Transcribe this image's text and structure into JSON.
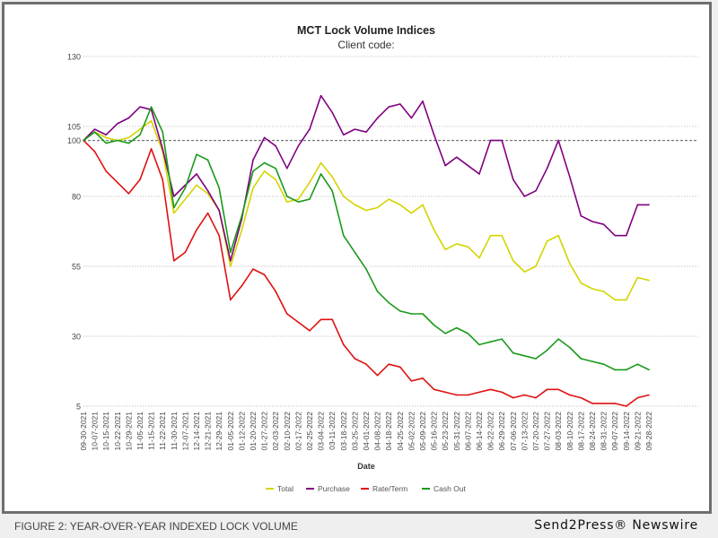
{
  "chart_data": {
    "type": "line",
    "title": "MCT Lock Volume Indices",
    "subtitle": "Client code:",
    "xlabel": "Date",
    "ylabel": "",
    "ylim": [
      5,
      130
    ],
    "y_ticks": [
      5,
      30,
      55,
      80,
      100,
      105,
      130
    ],
    "grid": true,
    "legend_position": "bottom",
    "categories": [
      "09-30-2021",
      "10-07-2021",
      "10-15-2021",
      "10-22-2021",
      "10-29-2021",
      "11-05-2021",
      "11-15-2021",
      "11-22-2021",
      "11-30-2021",
      "12-07-2021",
      "12-14-2021",
      "12-21-2021",
      "12-29-2021",
      "01-05-2022",
      "01-12-2022",
      "01-20-2022",
      "01-27-2022",
      "02-03-2022",
      "02-10-2022",
      "02-17-2022",
      "02-25-2022",
      "03-04-2022",
      "03-11-2022",
      "03-18-2022",
      "03-25-2022",
      "04-01-2022",
      "04-08-2022",
      "04-18-2022",
      "04-25-2022",
      "05-02-2022",
      "05-09-2022",
      "05-16-2022",
      "05-23-2022",
      "05-31-2022",
      "06-07-2022",
      "06-14-2022",
      "06-22-2022",
      "06-29-2022",
      "07-06-2022",
      "07-13-2022",
      "07-20-2022",
      "07-27-2022",
      "08-03-2022",
      "08-10-2022",
      "08-17-2022",
      "08-24-2022",
      "08-31-2022",
      "09-07-2022",
      "09-14-2022",
      "09-21-2022",
      "09-28-2022"
    ],
    "series": [
      {
        "name": "Total",
        "color": "#d4d400",
        "values": [
          100,
          103,
          101,
          100,
          101,
          104,
          107,
          96,
          74,
          79,
          84,
          81,
          75,
          55,
          68,
          83,
          89,
          86,
          78,
          79,
          85,
          92,
          87,
          80,
          77,
          75,
          76,
          79,
          77,
          74,
          77,
          68,
          61,
          63,
          62,
          58,
          66,
          66,
          57,
          53,
          55,
          64,
          66,
          56,
          49,
          47,
          46,
          43,
          43,
          51,
          50
        ]
      },
      {
        "name": "Purchase",
        "color": "#800080",
        "values": [
          100,
          104,
          102,
          106,
          108,
          112,
          111,
          97,
          80,
          84,
          88,
          82,
          75,
          57,
          72,
          93,
          101,
          98,
          90,
          98,
          104,
          116,
          110,
          102,
          104,
          103,
          108,
          112,
          113,
          108,
          114,
          102,
          91,
          94,
          91,
          88,
          100,
          100,
          86,
          80,
          82,
          90,
          100,
          87,
          73,
          71,
          70,
          66,
          66,
          77,
          77
        ]
      },
      {
        "name": "Rate/Term",
        "color": "#e01010",
        "values": [
          100,
          96,
          89,
          85,
          81,
          86,
          97,
          86,
          57,
          60,
          68,
          74,
          66,
          43,
          48,
          54,
          52,
          46,
          38,
          35,
          32,
          36,
          36,
          27,
          22,
          20,
          16,
          20,
          19,
          14,
          15,
          11,
          10,
          9,
          9,
          10,
          11,
          10,
          8,
          9,
          8,
          11,
          11,
          9,
          8,
          6,
          6,
          6,
          5,
          8,
          9
        ]
      },
      {
        "name": "Cash Out",
        "color": "#1a9a1a",
        "values": [
          100,
          103,
          99,
          100,
          99,
          102,
          112,
          103,
          76,
          83,
          95,
          93,
          83,
          60,
          73,
          89,
          92,
          90,
          80,
          78,
          79,
          88,
          82,
          66,
          60,
          54,
          46,
          42,
          39,
          38,
          38,
          34,
          31,
          33,
          31,
          27,
          28,
          29,
          24,
          23,
          22,
          25,
          29,
          26,
          22,
          21,
          20,
          18,
          18,
          20,
          18
        ]
      }
    ]
  },
  "footer": {
    "caption": "FIGURE 2: YEAR-OVER-YEAR INDEXED LOCK VOLUME",
    "brand": "Send2Press® Newswire"
  }
}
